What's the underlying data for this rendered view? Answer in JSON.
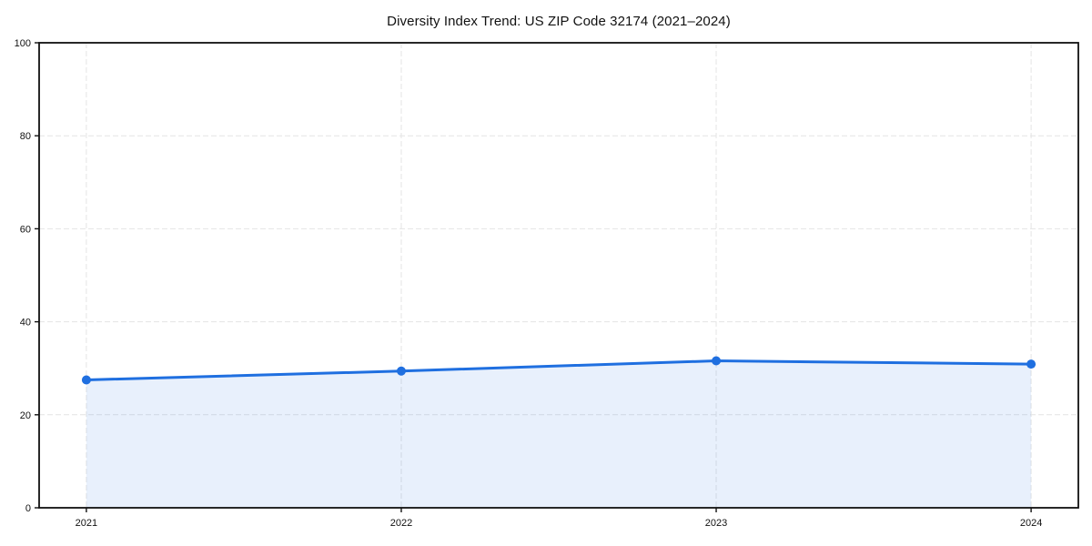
{
  "chart_data": {
    "type": "area",
    "title": "Diversity Index Trend: US ZIP Code 32174 (2021–2024)",
    "categories": [
      "2021",
      "2022",
      "2023",
      "2024"
    ],
    "values": [
      27.5,
      29.4,
      31.6,
      30.9
    ],
    "series_name": "Diversity Index",
    "xlabel": "",
    "ylabel": "",
    "ylim": [
      0,
      100
    ],
    "yticks": [
      0,
      20,
      40,
      60,
      80,
      100
    ],
    "grid": "dashed-both-axes",
    "legend": "none",
    "markers": "circle",
    "colors": {
      "line": "#1f6fe0",
      "marker": "#1f6fe0",
      "fill": "#1f6fe0",
      "fill_opacity": 0.1,
      "grid": "#e4e4e4",
      "spine": "#111111",
      "text": "#111111",
      "background": "#ffffff"
    }
  }
}
